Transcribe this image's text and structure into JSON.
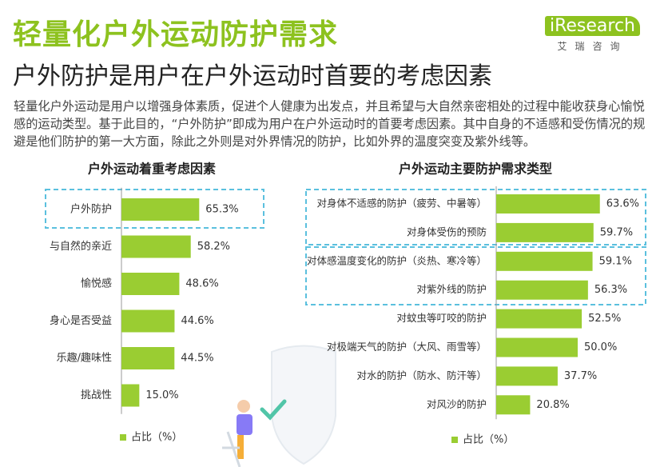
{
  "header": {
    "title": "轻量化户外运动防护需求",
    "subtitle": "户外防护是用户在户外运动时首要的考虑因素",
    "body": "轻量化户外运动是用户以增强身体素质，促进个人健康为出发点，并且希望与大自然亲密相处的过程中能收获身心愉悦感的运动类型。基于此目的，“户外防护”即成为用户在户外运动时的首要考虑因素。其中自身的不适感和受伤情况的规避是他们防护的第一大方面，除此之外则是对外界情况的防护，比如外界的温度突变及紫外线等。",
    "logo": "iResearch",
    "logo_cn": "艾瑞咨询"
  },
  "chart_data": [
    {
      "type": "hbar",
      "title": "户外运动着重考虑因素",
      "categories": [
        "户外防护",
        "与自然的亲近",
        "愉悦感",
        "身心是否受益",
        "乐趣/趣味性",
        "挑战性"
      ],
      "series": [
        {
          "name": "占比（%）",
          "color": "#9acd32",
          "values": [
            65.3,
            58.2,
            48.6,
            44.6,
            44.5,
            15.0
          ],
          "value_labels": [
            "65.3%",
            "58.2%",
            "48.6%",
            "44.6%",
            "44.5%",
            "15.0%"
          ]
        }
      ],
      "xlim": [
        0,
        100
      ]
    },
    {
      "type": "hbar",
      "title": "户外运动主要防护需求类型",
      "categories": [
        "对身体不适感的防护（疲劳、中暑等）",
        "对身体受伤的预防",
        "对体感温度变化的防护（炎热、寒冷等）",
        "对紫外线的防护",
        "对蚊虫等叮咬的防护",
        "对极端天气的防护（大风、雨雪等）",
        "对水的防护（防水、防汗等）",
        "对风沙的防护"
      ],
      "series": [
        {
          "name": "占比（%）",
          "color": "#9acd32",
          "values": [
            63.6,
            59.7,
            59.1,
            56.3,
            52.5,
            50.0,
            37.7,
            20.8
          ],
          "value_labels": [
            "63.6%",
            "59.7%",
            "59.1%",
            "56.3%",
            "52.5%",
            "50.0%",
            "37.7%",
            "20.8%"
          ]
        }
      ],
      "xlim": [
        0,
        100
      ]
    }
  ]
}
